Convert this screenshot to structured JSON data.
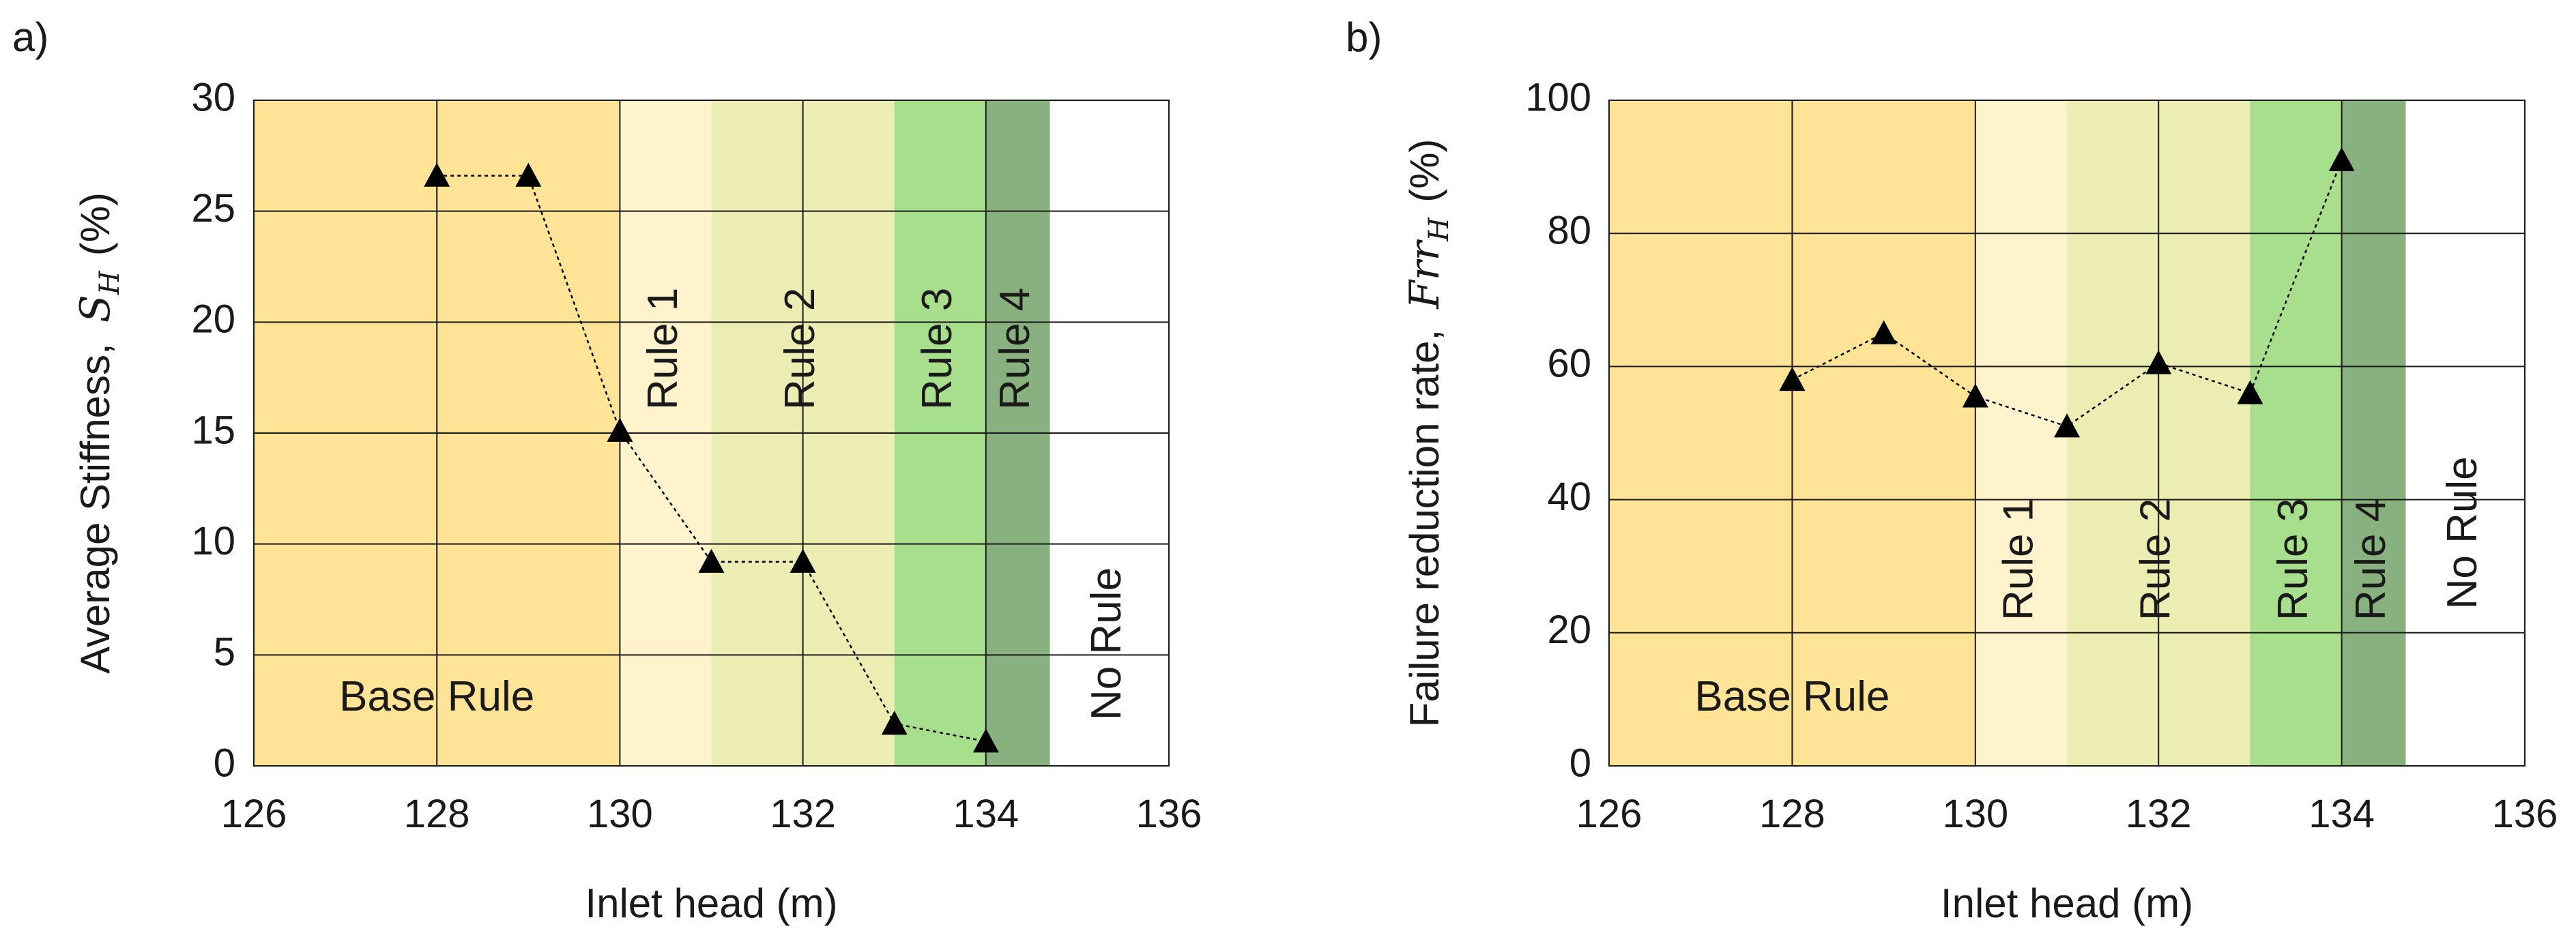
{
  "colors": {
    "base_rule": "#FFE396",
    "rule_1": "#FFF3CD",
    "rule_2": "#EBEDB3",
    "rule_3": "#A8DF8D",
    "rule_4": "#88B17F",
    "no_rule": "#FFFFFF",
    "grid": "#1a1a1a",
    "marker": "#000000"
  },
  "chart_data": [
    {
      "panel_label": "a)",
      "type": "scatter",
      "title": "",
      "xlabel": "Inlet head (m)",
      "ylabel_text": "Average Stiffness,",
      "ylabel_symbol": "S",
      "ylabel_subscript": "H",
      "ylabel_unit": "(%)",
      "xlim": [
        126,
        136
      ],
      "ylim": [
        0,
        30
      ],
      "xticks": [
        126,
        128,
        130,
        132,
        134,
        136
      ],
      "yticks": [
        0,
        5,
        10,
        15,
        20,
        25,
        30
      ],
      "x_gridlines": [
        126,
        128,
        130,
        132,
        134,
        136
      ],
      "y_gridlines": [
        0,
        5,
        10,
        15,
        20,
        25,
        30
      ],
      "regions": [
        {
          "label": "Base Rule",
          "from": 126,
          "to": 130,
          "color_key": "base_rule",
          "label_orientation": "horizontal",
          "label_value": 3
        },
        {
          "label": "Rule 1",
          "from": 130,
          "to": 131,
          "color_key": "rule_1",
          "label_orientation": "vertical",
          "label_value": 18.8
        },
        {
          "label": "Rule 2",
          "from": 131,
          "to": 133,
          "color_key": "rule_2",
          "label_orientation": "vertical",
          "label_value": 18.8
        },
        {
          "label": "Rule 3",
          "from": 133,
          "to": 134,
          "color_key": "rule_3",
          "label_orientation": "vertical",
          "label_value": 18.8
        },
        {
          "label": "Rule 4",
          "from": 134,
          "to": 134.7,
          "color_key": "rule_4",
          "label_orientation": "vertical",
          "label_value": 18.8
        },
        {
          "label": "No Rule",
          "from": 134.7,
          "to": 136,
          "color_key": "no_rule",
          "label_orientation": "vertical",
          "label_value": 5.5
        }
      ],
      "x": [
        128,
        129,
        130,
        131,
        132,
        133,
        134
      ],
      "y": [
        26.6,
        26.6,
        15.1,
        9.2,
        9.2,
        1.9,
        1.1
      ]
    },
    {
      "panel_label": "b)",
      "type": "scatter",
      "title": "",
      "xlabel": "Inlet head (m)",
      "ylabel_text": "Failure reduction rate,",
      "ylabel_symbol": "Frr",
      "ylabel_subscript": "H",
      "ylabel_unit": "(%)",
      "xlim": [
        126,
        136
      ],
      "ylim": [
        0,
        100
      ],
      "xticks": [
        126,
        128,
        130,
        132,
        134,
        136
      ],
      "yticks": [
        0,
        20,
        40,
        60,
        80,
        100
      ],
      "x_gridlines": [
        126,
        128,
        130,
        132,
        134,
        136
      ],
      "y_gridlines": [
        0,
        20,
        40,
        60,
        80,
        100
      ],
      "regions": [
        {
          "label": "Base Rule",
          "from": 126,
          "to": 130,
          "color_key": "base_rule",
          "label_orientation": "horizontal",
          "label_value": 10
        },
        {
          "label": "Rule 1",
          "from": 130,
          "to": 131,
          "color_key": "rule_1",
          "label_orientation": "vertical",
          "label_value": 31
        },
        {
          "label": "Rule 2",
          "from": 131,
          "to": 133,
          "color_key": "rule_2",
          "label_orientation": "vertical",
          "label_value": 31
        },
        {
          "label": "Rule 3",
          "from": 133,
          "to": 134,
          "color_key": "rule_3",
          "label_orientation": "vertical",
          "label_value": 31
        },
        {
          "label": "Rule 4",
          "from": 134,
          "to": 134.7,
          "color_key": "rule_4",
          "label_orientation": "vertical",
          "label_value": 31
        },
        {
          "label": "No Rule",
          "from": 134.7,
          "to": 136,
          "color_key": "no_rule",
          "label_orientation": "vertical",
          "label_value": 35
        }
      ],
      "x": [
        128,
        129,
        130,
        131,
        132,
        133,
        134
      ],
      "y": [
        58,
        65,
        55.5,
        51,
        60.5,
        56,
        91
      ]
    }
  ]
}
